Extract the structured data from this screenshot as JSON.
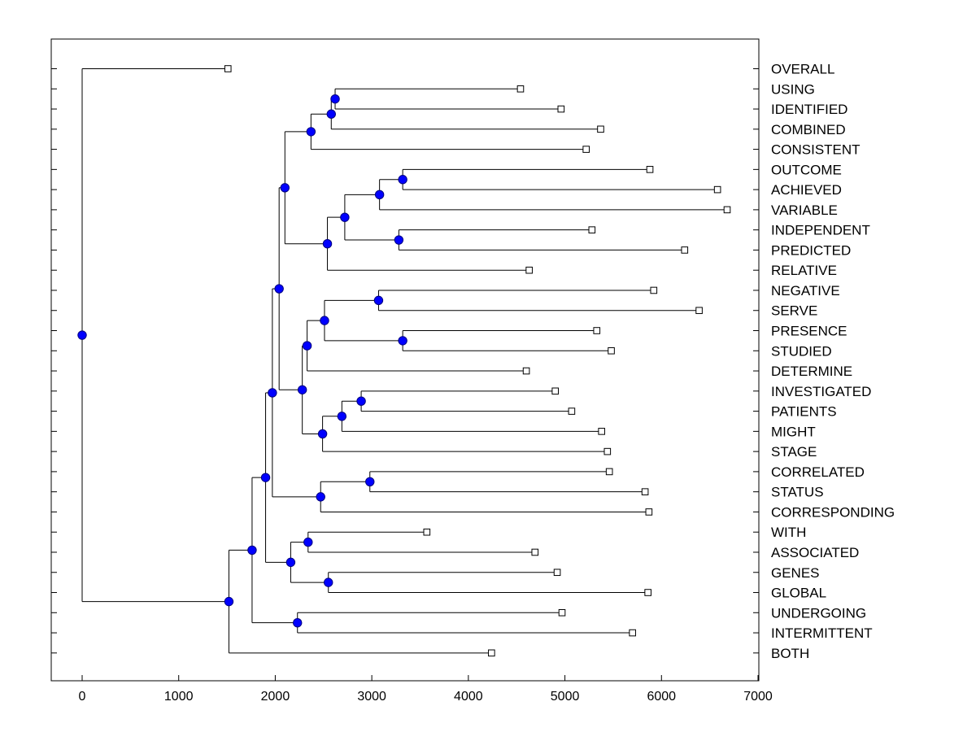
{
  "chart_data": {
    "type": "dendrogram",
    "orientation": "horizontal",
    "x_ticks": [
      0,
      1000,
      2000,
      3000,
      4000,
      5000,
      6000,
      7000
    ],
    "xlim": [
      -320,
      7000
    ],
    "leaves": [
      {
        "label": "OVERALL",
        "value": 1510
      },
      {
        "label": "USING",
        "value": 4540
      },
      {
        "label": "IDENTIFIED",
        "value": 4960
      },
      {
        "label": "COMBINED",
        "value": 5370
      },
      {
        "label": "CONSISTENT",
        "value": 5220
      },
      {
        "label": "OUTCOME",
        "value": 5880
      },
      {
        "label": "ACHIEVED",
        "value": 6580
      },
      {
        "label": "VARIABLE",
        "value": 6680
      },
      {
        "label": "INDEPENDENT",
        "value": 5280
      },
      {
        "label": "PREDICTED",
        "value": 6240
      },
      {
        "label": "RELATIVE",
        "value": 4630
      },
      {
        "label": "NEGATIVE",
        "value": 5920
      },
      {
        "label": "SERVE",
        "value": 6390
      },
      {
        "label": "PRESENCE",
        "value": 5330
      },
      {
        "label": "STUDIED",
        "value": 5480
      },
      {
        "label": "DETERMINE",
        "value": 4600
      },
      {
        "label": "INVESTIGATED",
        "value": 4900
      },
      {
        "label": "PATIENTS",
        "value": 5070
      },
      {
        "label": "MIGHT",
        "value": 5380
      },
      {
        "label": "STAGE",
        "value": 5440
      },
      {
        "label": "CORRELATED",
        "value": 5460
      },
      {
        "label": "STATUS",
        "value": 5830
      },
      {
        "label": "CORRESPONDING",
        "value": 5870
      },
      {
        "label": "WITH",
        "value": 3570
      },
      {
        "label": "ASSOCIATED",
        "value": 4690
      },
      {
        "label": "GENES",
        "value": 4920
      },
      {
        "label": "GLOBAL",
        "value": 5860
      },
      {
        "label": "UNDERGOING",
        "value": 4970
      },
      {
        "label": "INTERMITTENT",
        "value": 5700
      },
      {
        "label": "BOTH",
        "value": 4240
      }
    ],
    "merges": [
      {
        "id": "n1",
        "value": 2620,
        "children": [
          "USING",
          "IDENTIFIED"
        ]
      },
      {
        "id": "n2",
        "value": 2580,
        "children": [
          "n1",
          "COMBINED"
        ]
      },
      {
        "id": "n3",
        "value": 2370,
        "children": [
          "n2",
          "CONSISTENT"
        ]
      },
      {
        "id": "n4",
        "value": 3320,
        "children": [
          "OUTCOME",
          "ACHIEVED"
        ]
      },
      {
        "id": "n5",
        "value": 3080,
        "children": [
          "n4",
          "VARIABLE"
        ]
      },
      {
        "id": "n6",
        "value": 3280,
        "children": [
          "INDEPENDENT",
          "PREDICTED"
        ]
      },
      {
        "id": "n7",
        "value": 2720,
        "children": [
          "n5",
          "n6"
        ]
      },
      {
        "id": "n8",
        "value": 2540,
        "children": [
          "n7",
          "RELATIVE"
        ]
      },
      {
        "id": "n9",
        "value": 2100,
        "children": [
          "n3",
          "n8"
        ]
      },
      {
        "id": "n10",
        "value": 3070,
        "children": [
          "NEGATIVE",
          "SERVE"
        ]
      },
      {
        "id": "n11",
        "value": 3320,
        "children": [
          "PRESENCE",
          "STUDIED"
        ]
      },
      {
        "id": "n12",
        "value": 2510,
        "children": [
          "n10",
          "n11"
        ]
      },
      {
        "id": "n13",
        "value": 2330,
        "children": [
          "n12",
          "DETERMINE"
        ]
      },
      {
        "id": "n14",
        "value": 2890,
        "children": [
          "INVESTIGATED",
          "PATIENTS"
        ]
      },
      {
        "id": "n15",
        "value": 2690,
        "children": [
          "n14",
          "MIGHT"
        ]
      },
      {
        "id": "n16",
        "value": 2490,
        "children": [
          "n15",
          "STAGE"
        ]
      },
      {
        "id": "n17",
        "value": 2280,
        "children": [
          "n13",
          "n16"
        ]
      },
      {
        "id": "n18",
        "value": 2040,
        "children": [
          "n9",
          "n17"
        ]
      },
      {
        "id": "n19",
        "value": 2980,
        "children": [
          "CORRELATED",
          "STATUS"
        ]
      },
      {
        "id": "n20",
        "value": 2470,
        "children": [
          "n19",
          "CORRESPONDING"
        ]
      },
      {
        "id": "n21",
        "value": 1970,
        "children": [
          "n18",
          "n20"
        ]
      },
      {
        "id": "n22",
        "value": 2340,
        "children": [
          "WITH",
          "ASSOCIATED"
        ]
      },
      {
        "id": "n23",
        "value": 2550,
        "children": [
          "GENES",
          "GLOBAL"
        ]
      },
      {
        "id": "n24",
        "value": 2160,
        "children": [
          "n22",
          "n23"
        ]
      },
      {
        "id": "n25",
        "value": 1900,
        "children": [
          "n21",
          "n24"
        ]
      },
      {
        "id": "n26",
        "value": 2230,
        "children": [
          "UNDERGOING",
          "INTERMITTENT"
        ]
      },
      {
        "id": "n27",
        "value": 1760,
        "children": [
          "n25",
          "n26"
        ]
      },
      {
        "id": "n28",
        "value": 1520,
        "children": [
          "n27",
          "BOTH"
        ]
      },
      {
        "id": "n29",
        "value": 0,
        "children": [
          "OVERALL",
          "n28"
        ]
      }
    ],
    "colors": {
      "node_fill": "#0000ff",
      "node_stroke": "#000080",
      "line": "#000000",
      "leaf_marker_fill": "#ffffff"
    }
  }
}
